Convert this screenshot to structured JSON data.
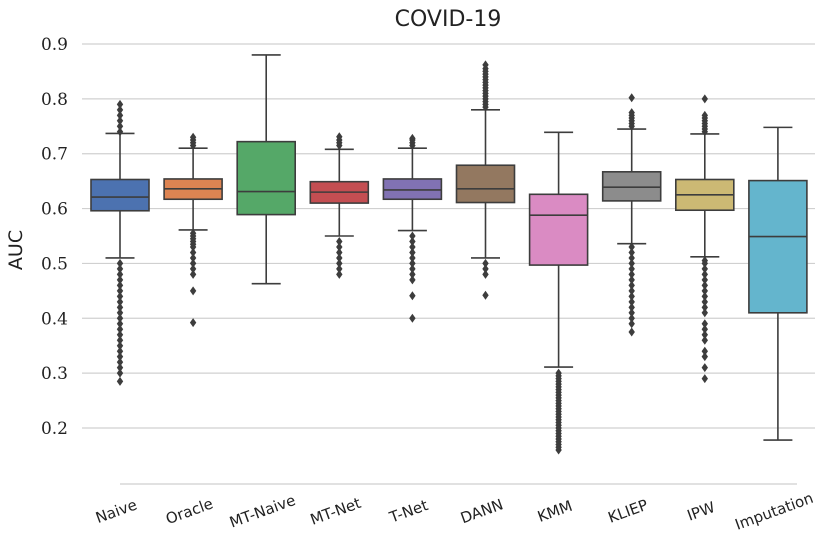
{
  "chart_data": {
    "type": "box",
    "title": "COVID-19",
    "xlabel": "",
    "ylabel": "AUC",
    "ylim": [
      0.15,
      0.9
    ],
    "yticks": [
      0.2,
      0.3,
      0.4,
      0.5,
      0.6,
      0.7,
      0.8,
      0.9
    ],
    "ytick_labels": [
      "0.2",
      "0.3",
      "0.4",
      "0.5",
      "0.6",
      "0.7",
      "0.8",
      "0.9"
    ],
    "grid": true,
    "categories": [
      "Naive",
      "Oracle",
      "MT-Naive",
      "MT-Net",
      "T-Net",
      "DANN",
      "KMM",
      "KLIEP",
      "IPW",
      "Imputation"
    ],
    "boxes": [
      {
        "name": "Naive",
        "color": "#4c72b0",
        "whislo": 0.51,
        "q1": 0.596,
        "med": 0.621,
        "q3": 0.653,
        "whishi": 0.737,
        "fliers": [
          0.74,
          0.75,
          0.76,
          0.77,
          0.78,
          0.79,
          0.5,
          0.49,
          0.48,
          0.47,
          0.46,
          0.45,
          0.44,
          0.43,
          0.42,
          0.41,
          0.4,
          0.39,
          0.38,
          0.37,
          0.36,
          0.35,
          0.34,
          0.33,
          0.32,
          0.31,
          0.3,
          0.285
        ]
      },
      {
        "name": "Oracle",
        "color": "#dd8452",
        "whislo": 0.561,
        "q1": 0.617,
        "med": 0.636,
        "q3": 0.654,
        "whishi": 0.71,
        "fliers": [
          0.715,
          0.72,
          0.725,
          0.73,
          0.555,
          0.55,
          0.545,
          0.54,
          0.535,
          0.53,
          0.52,
          0.51,
          0.5,
          0.49,
          0.48,
          0.45,
          0.392
        ]
      },
      {
        "name": "MT-Naive",
        "color": "#55a868",
        "whislo": 0.463,
        "q1": 0.589,
        "med": 0.631,
        "q3": 0.722,
        "whishi": 0.88,
        "fliers": []
      },
      {
        "name": "MT-Net",
        "color": "#c44e52",
        "whislo": 0.55,
        "q1": 0.61,
        "med": 0.63,
        "q3": 0.649,
        "whishi": 0.708,
        "fliers": [
          0.715,
          0.72,
          0.725,
          0.731,
          0.54,
          0.53,
          0.52,
          0.51,
          0.5,
          0.49,
          0.48
        ]
      },
      {
        "name": "T-Net",
        "color": "#8172b3",
        "whislo": 0.56,
        "q1": 0.617,
        "med": 0.634,
        "q3": 0.654,
        "whishi": 0.71,
        "fliers": [
          0.715,
          0.72,
          0.725,
          0.728,
          0.55,
          0.54,
          0.53,
          0.52,
          0.51,
          0.5,
          0.49,
          0.48,
          0.47,
          0.441,
          0.4
        ]
      },
      {
        "name": "DANN",
        "color": "#937860",
        "whislo": 0.51,
        "q1": 0.611,
        "med": 0.636,
        "q3": 0.679,
        "whishi": 0.78,
        "fliers": [
          0.785,
          0.79,
          0.795,
          0.8,
          0.805,
          0.81,
          0.815,
          0.82,
          0.825,
          0.83,
          0.835,
          0.84,
          0.845,
          0.85,
          0.855,
          0.862,
          0.5,
          0.49,
          0.48,
          0.442
        ]
      },
      {
        "name": "KMM",
        "color": "#da8bc3",
        "whislo": 0.311,
        "q1": 0.497,
        "med": 0.588,
        "q3": 0.626,
        "whishi": 0.739,
        "fliers": [
          0.3,
          0.295,
          0.29,
          0.285,
          0.28,
          0.275,
          0.27,
          0.265,
          0.26,
          0.255,
          0.25,
          0.245,
          0.24,
          0.235,
          0.23,
          0.225,
          0.22,
          0.215,
          0.21,
          0.205,
          0.2,
          0.195,
          0.19,
          0.185,
          0.18,
          0.175,
          0.17,
          0.165,
          0.16
        ]
      },
      {
        "name": "KLIEP",
        "color": "#8c8c8c",
        "whislo": 0.536,
        "q1": 0.614,
        "med": 0.639,
        "q3": 0.667,
        "whishi": 0.745,
        "fliers": [
          0.75,
          0.755,
          0.76,
          0.765,
          0.77,
          0.775,
          0.802,
          0.53,
          0.52,
          0.51,
          0.5,
          0.49,
          0.48,
          0.47,
          0.46,
          0.45,
          0.44,
          0.43,
          0.42,
          0.41,
          0.4,
          0.39,
          0.375
        ]
      },
      {
        "name": "IPW",
        "color": "#ccb974",
        "whislo": 0.512,
        "q1": 0.597,
        "med": 0.625,
        "q3": 0.653,
        "whishi": 0.736,
        "fliers": [
          0.74,
          0.745,
          0.75,
          0.755,
          0.76,
          0.765,
          0.77,
          0.8,
          0.505,
          0.5,
          0.49,
          0.48,
          0.47,
          0.46,
          0.45,
          0.44,
          0.43,
          0.42,
          0.41,
          0.39,
          0.38,
          0.37,
          0.36,
          0.34,
          0.33,
          0.31,
          0.29
        ]
      },
      {
        "name": "Imputation",
        "color": "#64b5cd",
        "whislo": 0.178,
        "q1": 0.41,
        "med": 0.549,
        "q3": 0.651,
        "whishi": 0.748,
        "fliers": []
      }
    ]
  }
}
